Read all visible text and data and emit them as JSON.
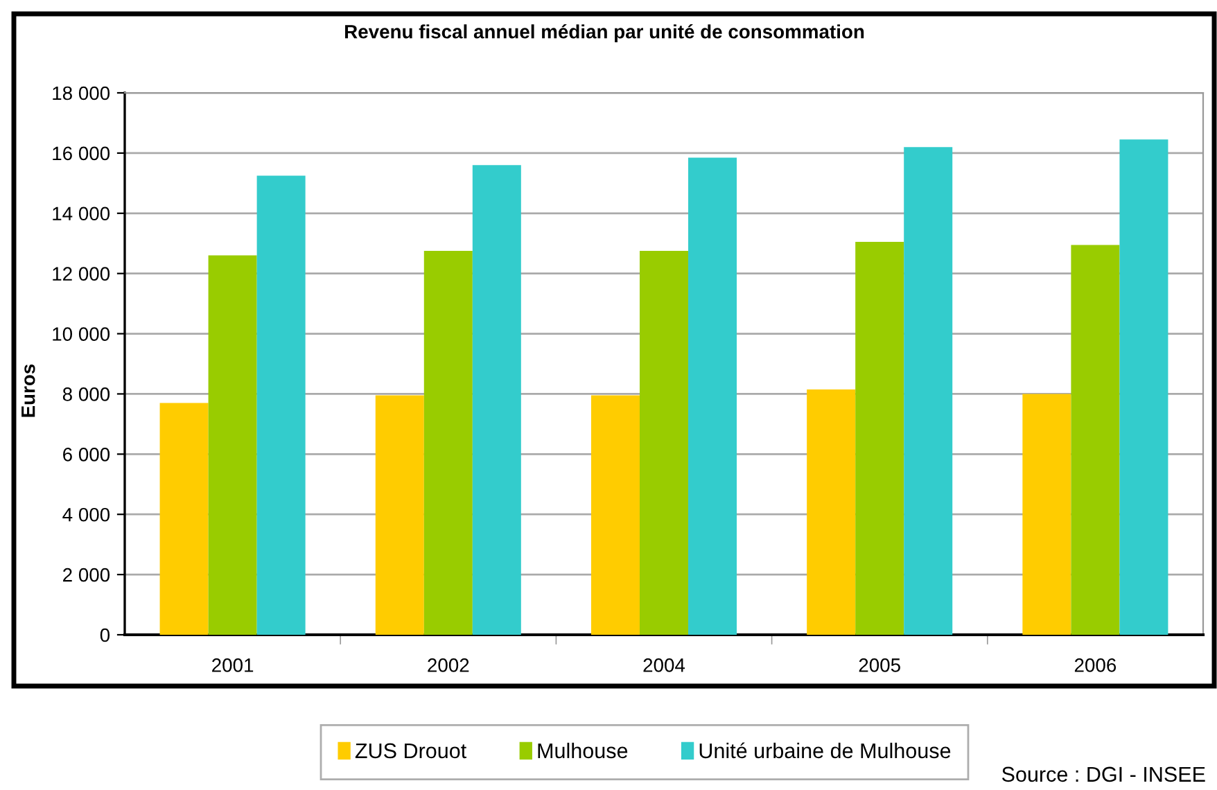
{
  "chart_data": {
    "type": "bar",
    "title": "Revenu fiscal annuel médian par unité de consommation",
    "ylabel": "Euros",
    "categories": [
      "2001",
      "2002",
      "2004",
      "2005",
      "2006"
    ],
    "series": [
      {
        "name": "ZUS Drouot",
        "color": "#ffcc00",
        "values": [
          7700,
          7950,
          7950,
          8150,
          8000
        ]
      },
      {
        "name": "Mulhouse",
        "color": "#99cc00",
        "values": [
          12600,
          12750,
          12750,
          13050,
          12950
        ]
      },
      {
        "name": "Unité urbaine de Mulhouse",
        "color": "#33cccc",
        "values": [
          15250,
          15600,
          15850,
          16200,
          16450
        ]
      }
    ],
    "ylim": [
      0,
      18000
    ],
    "yticks": [
      0,
      {
        "value": 2000,
        "label": "2 000"
      },
      {
        "value": 4000,
        "label": "4 000"
      },
      {
        "value": 6000,
        "label": "6 000"
      },
      {
        "value": 8000,
        "label": "8 000"
      },
      {
        "value": 10000,
        "label": "10 000"
      },
      {
        "value": 12000,
        "label": "12 000"
      },
      {
        "value": 14000,
        "label": "14 000"
      },
      {
        "value": 16000,
        "label": "16 000"
      },
      {
        "value": 18000,
        "label": "18 000"
      }
    ],
    "grid": "y",
    "legend": "bottom",
    "annotations": [
      "Source : DGI - INSEE"
    ]
  }
}
